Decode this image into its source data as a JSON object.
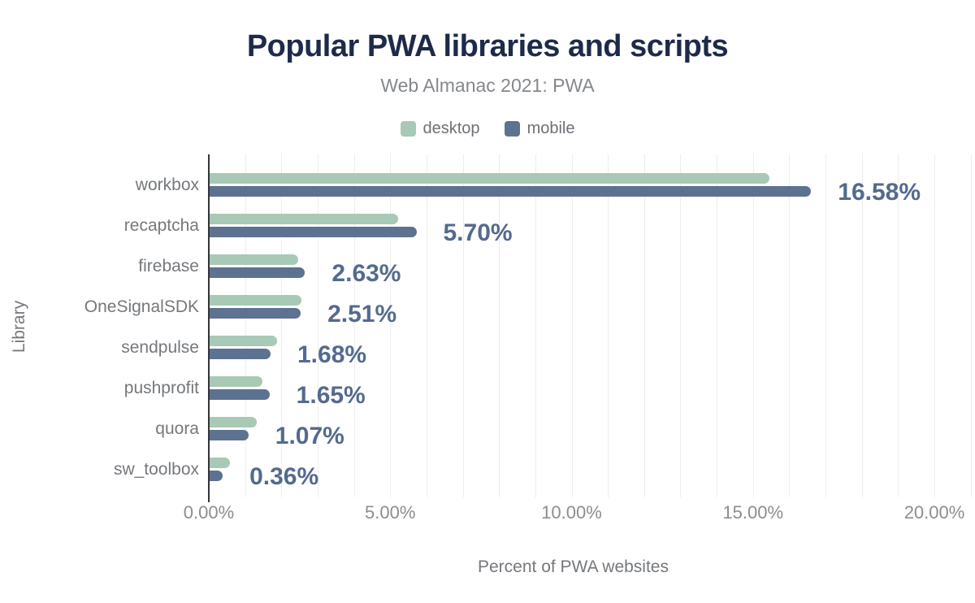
{
  "header": {
    "title": "Popular PWA libraries and scripts",
    "subtitle": "Web Almanac 2021: PWA"
  },
  "colors": {
    "title": "#1e2a4a",
    "desktop": "#a8c9b5",
    "mobile": "#5d7290",
    "value_label": "#546a8e",
    "gridline": "#ededed",
    "axis_line": "#333338"
  },
  "chart_data": {
    "type": "bar",
    "orientation": "horizontal",
    "title": "Popular PWA libraries and scripts",
    "subtitle": "Web Almanac 2021: PWA",
    "categories": [
      "workbox",
      "recaptcha",
      "firebase",
      "OneSignalSDK",
      "sendpulse",
      "pushprofit",
      "quora",
      "sw_toolbox"
    ],
    "series": [
      {
        "name": "desktop",
        "color": "#a8c9b5",
        "values": [
          15.43,
          5.19,
          2.45,
          2.53,
          1.87,
          1.45,
          1.3,
          0.55
        ]
      },
      {
        "name": "mobile",
        "color": "#5d7290",
        "values": [
          16.58,
          5.7,
          2.63,
          2.51,
          1.68,
          1.65,
          1.07,
          0.36
        ]
      }
    ],
    "value_labels": [
      "16.58%",
      "5.70%",
      "2.63%",
      "2.51%",
      "1.68%",
      "1.65%",
      "1.07%",
      "0.36%"
    ],
    "value_labels_series": "mobile",
    "xlabel": "Percent of PWA websites",
    "ylabel": "Library",
    "x_ticks": [
      "0.00%",
      "5.00%",
      "10.00%",
      "15.00%",
      "20.00%"
    ],
    "x_tick_values": [
      0,
      5,
      10,
      15,
      20
    ],
    "xlim": [
      0,
      21
    ],
    "grid": "vertical minor gridlines every 1%",
    "legend_position": "top center"
  }
}
